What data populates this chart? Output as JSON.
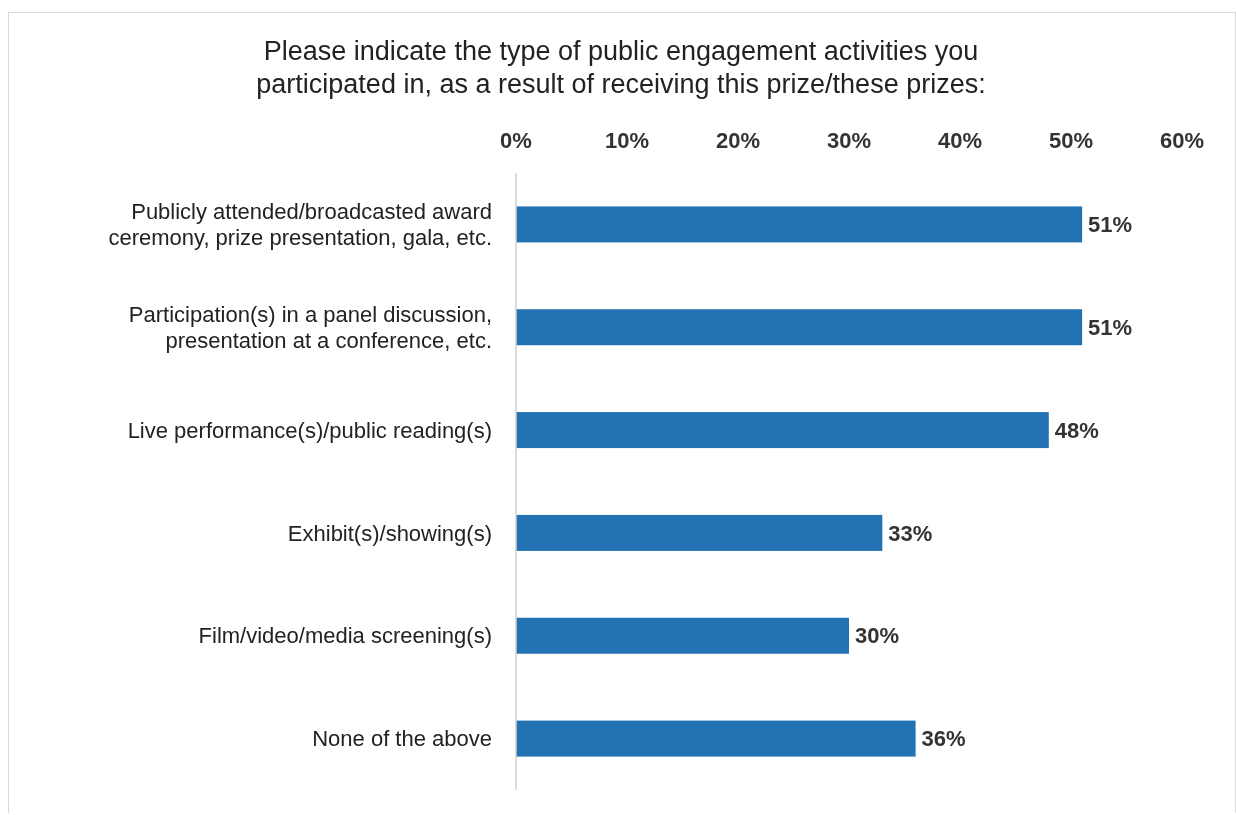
{
  "chart_data": {
    "type": "bar",
    "orientation": "horizontal",
    "title": "Please indicate the type of public engagement activities you participated in, as a result of receiving this prize/these prizes:",
    "categories": [
      "Publicly attended/broadcasted award ceremony, prize presentation, gala, etc.",
      "Participation(s) in a panel discussion, presentation at a conference, etc.",
      "Live performance(s)/public reading(s)",
      "Exhibit(s)/showing(s)",
      "Film/video/media screening(s)",
      "None of the above"
    ],
    "values": [
      51,
      51,
      48,
      33,
      30,
      36
    ],
    "value_labels": [
      "51%",
      "51%",
      "48%",
      "33%",
      "30%",
      "36%"
    ],
    "color": "#2272b4",
    "xlim": [
      0,
      60
    ],
    "xticks": [
      {
        "value": 0,
        "label": "0%"
      },
      {
        "value": 10,
        "label": "10%"
      },
      {
        "value": 20,
        "label": "20%"
      },
      {
        "value": 30,
        "label": "30%"
      },
      {
        "value": 40,
        "label": "40%"
      },
      {
        "value": 50,
        "label": "50%"
      },
      {
        "value": 60,
        "label": "60%"
      }
    ],
    "grid": false
  }
}
